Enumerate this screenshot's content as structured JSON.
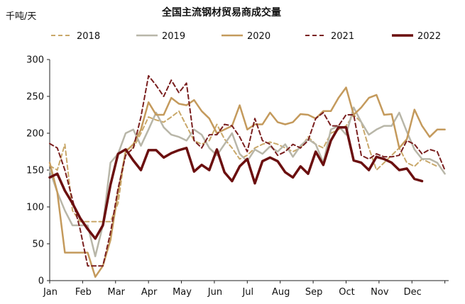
{
  "chart_data": {
    "type": "line",
    "title": "全国主流钢材贸易商成交量",
    "unit_label": "千吨/天",
    "xlabel": "",
    "ylabel": "",
    "ylim": [
      0,
      300
    ],
    "yticks": [
      0,
      50,
      100,
      150,
      200,
      250,
      300
    ],
    "x_tick_labels": [
      "Jan",
      "Feb",
      "Mar",
      "Apr",
      "May",
      "Jun",
      "Jul",
      "Aug",
      "Sep",
      "Oct",
      "Nov",
      "Dec"
    ],
    "xlim_weeks": [
      0,
      52.5
    ],
    "legend_position": "top",
    "grid": false,
    "series": [
      {
        "name": "2018",
        "color": "#c9a86a",
        "dash": "6,4",
        "width": 2,
        "x": [
          0,
          1,
          2,
          3,
          4,
          5,
          6,
          7,
          8,
          9,
          10,
          11,
          12,
          13,
          14,
          15,
          16,
          17,
          18,
          19,
          20,
          21,
          22,
          23,
          24,
          25,
          26,
          27,
          28,
          29,
          30,
          31,
          32,
          33,
          34,
          35,
          36,
          37,
          38,
          39,
          40,
          41,
          42,
          43,
          44,
          45,
          46,
          47,
          48,
          49,
          50,
          51
        ],
        "values": [
          156,
          150,
          185,
          95,
          80,
          80,
          80,
          80,
          80,
          105,
          178,
          180,
          200,
          222,
          218,
          215,
          222,
          230,
          210,
          190,
          185,
          190,
          212,
          192,
          180,
          165,
          170,
          180,
          185,
          188,
          185,
          180,
          175,
          180,
          195,
          185,
          180,
          200,
          205,
          210,
          225,
          215,
          180,
          150,
          160,
          170,
          180,
          160,
          155,
          165,
          160,
          155
        ]
      },
      {
        "name": "2019",
        "color": "#b8b6a8",
        "dash": "",
        "width": 2.5,
        "x": [
          0,
          1,
          2,
          3,
          4,
          5,
          6,
          7,
          8,
          9,
          10,
          11,
          12,
          13,
          14,
          15,
          16,
          17,
          18,
          19,
          20,
          21,
          22,
          23,
          24,
          25,
          26,
          27,
          28,
          29,
          30,
          31,
          32,
          33,
          34,
          35,
          36,
          37,
          38,
          39,
          40,
          41,
          42,
          43,
          44,
          45,
          46,
          47,
          48,
          49,
          50,
          51,
          52
        ],
        "values": [
          150,
          120,
          95,
          75,
          75,
          75,
          33,
          75,
          160,
          172,
          200,
          205,
          183,
          205,
          228,
          208,
          198,
          195,
          190,
          205,
          198,
          180,
          170,
          185,
          200,
          172,
          162,
          178,
          172,
          182,
          175,
          185,
          168,
          183,
          192,
          185,
          160,
          205,
          210,
          198,
          235,
          215,
          198,
          205,
          210,
          210,
          228,
          202,
          178,
          165,
          165,
          160,
          145
        ]
      },
      {
        "name": "2020",
        "color": "#c49a5c",
        "dash": "",
        "width": 2.5,
        "x": [
          0,
          1,
          2,
          3,
          4,
          5,
          6,
          7,
          8,
          9,
          10,
          11,
          12,
          13,
          14,
          15,
          16,
          17,
          18,
          19,
          20,
          21,
          22,
          23,
          24,
          25,
          26,
          27,
          28,
          29,
          30,
          31,
          32,
          33,
          34,
          35,
          36,
          37,
          38,
          39,
          40,
          41,
          42,
          43,
          44,
          45,
          46,
          47,
          48,
          49,
          50,
          51,
          52
        ],
        "values": [
          160,
          120,
          38,
          38,
          38,
          38,
          5,
          20,
          55,
          120,
          175,
          185,
          205,
          242,
          225,
          225,
          248,
          240,
          238,
          245,
          230,
          220,
          200,
          205,
          210,
          238,
          205,
          212,
          212,
          228,
          215,
          212,
          215,
          226,
          225,
          220,
          230,
          230,
          248,
          262,
          225,
          235,
          248,
          252,
          225,
          226,
          180,
          192,
          232,
          210,
          195,
          205,
          205
        ]
      },
      {
        "name": "2021",
        "color": "#7a1f1f",
        "dash": "6,4",
        "width": 2,
        "x": [
          0,
          1,
          2,
          3,
          4,
          5,
          6,
          7,
          8,
          9,
          10,
          11,
          12,
          13,
          14,
          15,
          16,
          17,
          18,
          19,
          20,
          21,
          22,
          23,
          24,
          25,
          26,
          27,
          28,
          29,
          30,
          31,
          32,
          33,
          34,
          35,
          36,
          37,
          38,
          39,
          40,
          41,
          42,
          43,
          44,
          45,
          46,
          47,
          48,
          49,
          50,
          51,
          52
        ],
        "values": [
          186,
          180,
          150,
          110,
          70,
          20,
          20,
          20,
          65,
          125,
          170,
          180,
          222,
          278,
          265,
          250,
          272,
          255,
          268,
          190,
          180,
          198,
          198,
          212,
          210,
          195,
          175,
          220,
          190,
          185,
          170,
          175,
          185,
          180,
          190,
          220,
          228,
          210,
          210,
          225,
          225,
          170,
          165,
          172,
          168,
          168,
          170,
          190,
          185,
          172,
          178,
          175,
          150
        ]
      },
      {
        "name": "2022",
        "color": "#6b0f0f",
        "dash": "",
        "width": 3.5,
        "x": [
          0,
          1,
          2,
          3,
          4,
          5,
          6,
          7,
          8,
          9,
          10,
          11,
          12,
          13,
          14,
          15,
          16,
          17,
          18,
          19,
          20,
          21,
          22,
          23,
          24,
          25,
          26,
          27,
          28,
          29,
          30,
          31,
          32,
          33,
          34,
          35,
          36,
          37,
          38,
          39,
          40,
          41,
          42,
          43,
          44,
          45,
          46,
          47,
          48,
          49
        ],
        "values": [
          140,
          145,
          122,
          105,
          85,
          70,
          57,
          75,
          130,
          172,
          178,
          163,
          150,
          177,
          177,
          167,
          173,
          177,
          180,
          148,
          157,
          150,
          178,
          147,
          135,
          155,
          165,
          132,
          162,
          167,
          162,
          147,
          140,
          155,
          145,
          175,
          157,
          190,
          208,
          208,
          163,
          160,
          150,
          168,
          165,
          160,
          150,
          152,
          138,
          135
        ]
      }
    ]
  }
}
